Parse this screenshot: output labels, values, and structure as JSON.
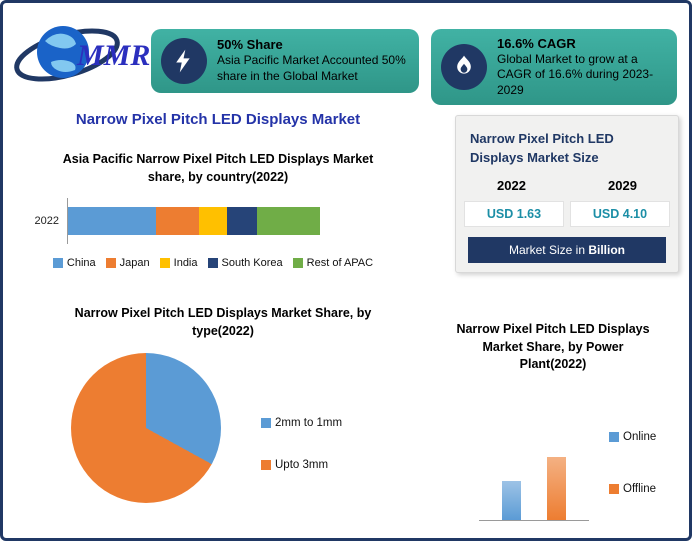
{
  "canvas": {
    "border_color": "#203864",
    "background": "#FFFFFF"
  },
  "colors": {
    "navy": "#203864",
    "teal_card": "#35A79B",
    "title_blue": "#2433A8",
    "value_teal": "#1B8EA6"
  },
  "logo": {
    "text": "MMR"
  },
  "header_cards": [
    {
      "icon": "lightning-bolt-icon",
      "title": "50% Share",
      "body": "Asia Pacific Market Accounted 50% share in the Global Market"
    },
    {
      "icon": "flame-icon",
      "title": "16.6% CAGR",
      "body": "Global Market to grow at a CAGR of 16.6% during 2023-2029"
    }
  ],
  "main_title": "Narrow Pixel Pitch LED Displays Market",
  "chart_data": [
    {
      "id": "apac-country-share",
      "type": "bar",
      "orientation": "horizontal",
      "stacked": true,
      "title": "Asia Pacific Narrow Pixel Pitch LED Displays Market share, by country(2022)",
      "categories": [
        "2022"
      ],
      "series": [
        {
          "name": "China",
          "values": [
            35
          ],
          "color": "#5B9BD5"
        },
        {
          "name": "Japan",
          "values": [
            17
          ],
          "color": "#ED7D31"
        },
        {
          "name": "India",
          "values": [
            11
          ],
          "color": "#FFC000"
        },
        {
          "name": "South Korea",
          "values": [
            12
          ],
          "color": "#264478"
        },
        {
          "name": "Rest of APAC",
          "values": [
            25
          ],
          "color": "#70AD47"
        }
      ],
      "xlim": [
        0,
        100
      ],
      "legend_position": "bottom"
    },
    {
      "id": "type-share",
      "type": "pie",
      "title": "Narrow Pixel Pitch LED Displays Market Share, by type(2022)",
      "slices": [
        {
          "label": "2mm to 1mm",
          "value": 33,
          "color": "#5B9BD5"
        },
        {
          "label": "Upto 3mm",
          "value": 67,
          "color": "#ED7D31"
        }
      ],
      "start_angle": "top-clockwise",
      "legend_position": "right"
    },
    {
      "id": "power-plant-share",
      "type": "bar",
      "orientation": "vertical",
      "title": "Narrow Pixel Pitch LED Displays Market Share, by Power Plant(2022)",
      "categories": [
        "Online",
        "Offline"
      ],
      "values": [
        45,
        72
      ],
      "colors": [
        "#5B9BD5",
        "#ED7D31"
      ],
      "colors_light": [
        "#9DC3E6",
        "#F4B183"
      ],
      "ylim": [
        0,
        100
      ],
      "legend_position": "right"
    },
    {
      "id": "market-size",
      "type": "table",
      "title": "Narrow Pixel Pitch LED Displays Market Size",
      "columns": [
        "2022",
        "2029"
      ],
      "rows": [
        [
          "USD 1.63",
          "USD 4.10"
        ]
      ],
      "footer_plain": "Market Size in",
      "footer_bold": "Billion"
    }
  ]
}
